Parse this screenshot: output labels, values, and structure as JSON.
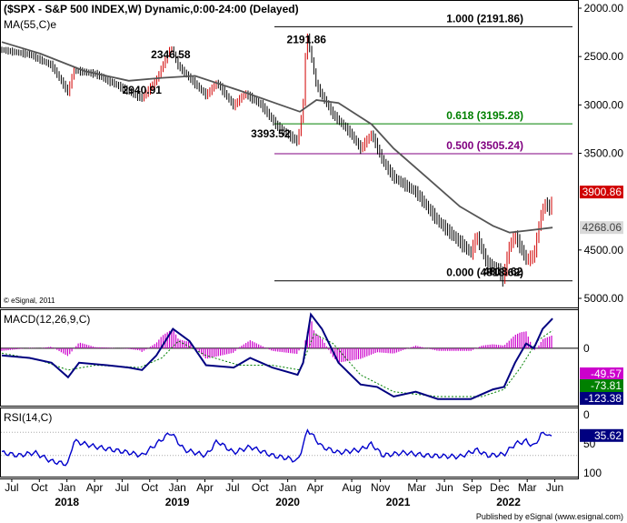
{
  "chart_data": {
    "type": "candlestick",
    "main": {
      "title": "($SPX - S&P 500 INDEX,W) Dynamic,0:00-24:00 (Delayed)",
      "ma_label": "MA(55,C)e",
      "copyright": "© eSignal, 2011",
      "ylim": [
        2000,
        5000
      ],
      "yticks": [
        {
          "v": 5000,
          "label": "5000.00"
        },
        {
          "v": 4500,
          "label": "4500.00"
        },
        {
          "v": 3500,
          "label": "3500.00"
        },
        {
          "v": 3000,
          "label": "3000.00"
        },
        {
          "v": 2500,
          "label": "2500.00"
        },
        {
          "v": 2000,
          "label": "2000.00"
        }
      ],
      "last_ma": {
        "v": 4268.06,
        "label": "4268.06",
        "color": "#d9d9d9",
        "text": "#444444"
      },
      "last_price": {
        "v": 3900.86,
        "label": "3900.86",
        "color": "#d00000",
        "text": "#ffffff"
      },
      "fib_levels": [
        {
          "v": 4818.62,
          "label": "0.000 (4818.62)",
          "color": "#000000"
        },
        {
          "v": 3505.24,
          "label": "0.500 (3505.24)",
          "color": "#800080"
        },
        {
          "v": 3195.28,
          "label": "0.618 (3195.28)",
          "color": "#008000"
        },
        {
          "v": 2191.86,
          "label": "1.000 (2191.86)",
          "color": "#000000"
        }
      ],
      "annotations": [
        {
          "label": "4818.62",
          "x": 2021.99,
          "v": 4818.62,
          "pos": "above"
        },
        {
          "label": "3393.52",
          "x": 2020.13,
          "v": 3393.52,
          "pos": "above-left"
        },
        {
          "label": "2940.91",
          "x": 2018.72,
          "v": 2940.91,
          "pos": "above"
        },
        {
          "label": "2346.58",
          "x": 2018.98,
          "v": 2346.58,
          "pos": "below"
        },
        {
          "label": "2191.86",
          "x": 2020.21,
          "v": 2191.86,
          "pos": "below"
        }
      ],
      "price_keypoints": [
        [
          2017.45,
          2430
        ],
        [
          2017.7,
          2480
        ],
        [
          2017.9,
          2590
        ],
        [
          2018.05,
          2870
        ],
        [
          2018.1,
          2640
        ],
        [
          2018.3,
          2680
        ],
        [
          2018.5,
          2800
        ],
        [
          2018.72,
          2930
        ],
        [
          2018.85,
          2740
        ],
        [
          2018.98,
          2400
        ],
        [
          2019.05,
          2600
        ],
        [
          2019.3,
          2900
        ],
        [
          2019.4,
          2770
        ],
        [
          2019.55,
          3010
        ],
        [
          2019.65,
          2880
        ],
        [
          2019.8,
          3000
        ],
        [
          2019.95,
          3230
        ],
        [
          2020.13,
          3380
        ],
        [
          2020.18,
          3000
        ],
        [
          2020.21,
          2240
        ],
        [
          2020.3,
          2800
        ],
        [
          2020.45,
          3100
        ],
        [
          2020.6,
          3280
        ],
        [
          2020.7,
          3450
        ],
        [
          2020.8,
          3300
        ],
        [
          2020.9,
          3580
        ],
        [
          2021.0,
          3750
        ],
        [
          2021.2,
          3900
        ],
        [
          2021.4,
          4200
        ],
        [
          2021.6,
          4420
        ],
        [
          2021.7,
          4530
        ],
        [
          2021.75,
          4350
        ],
        [
          2021.85,
          4650
        ],
        [
          2021.95,
          4700
        ],
        [
          2021.99,
          4800
        ],
        [
          2022.05,
          4450
        ],
        [
          2022.1,
          4350
        ],
        [
          2022.2,
          4600
        ],
        [
          2022.27,
          4560
        ],
        [
          2022.33,
          4150
        ],
        [
          2022.38,
          4000
        ],
        [
          2022.42,
          4110
        ],
        [
          2022.44,
          3900
        ]
      ],
      "ma_keypoints": [
        [
          2017.45,
          2350
        ],
        [
          2017.8,
          2470
        ],
        [
          2018.2,
          2650
        ],
        [
          2018.6,
          2750
        ],
        [
          2018.9,
          2720
        ],
        [
          2019.2,
          2700
        ],
        [
          2019.6,
          2850
        ],
        [
          2019.95,
          2990
        ],
        [
          2020.15,
          3070
        ],
        [
          2020.3,
          2950
        ],
        [
          2020.5,
          2980
        ],
        [
          2020.8,
          3200
        ],
        [
          2021.0,
          3450
        ],
        [
          2021.3,
          3750
        ],
        [
          2021.6,
          4050
        ],
        [
          2021.9,
          4250
        ],
        [
          2022.05,
          4320
        ],
        [
          2022.2,
          4300
        ],
        [
          2022.44,
          4268
        ]
      ]
    },
    "macd": {
      "label": "MACD(12,26,9,C)",
      "ylim": [
        -150,
        230
      ],
      "zero": 0,
      "values": [
        {
          "label": "-49.57",
          "color": "#cc00cc",
          "text": "#ffffff"
        },
        {
          "label": "-73.81",
          "color": "#008000",
          "text": "#ffffff"
        },
        {
          "label": "-123.38",
          "color": "#000080",
          "text": "#ffffff"
        }
      ],
      "macd_keypoints": [
        [
          2017.45,
          30
        ],
        [
          2017.7,
          40
        ],
        [
          2017.9,
          60
        ],
        [
          2018.05,
          120
        ],
        [
          2018.15,
          60
        ],
        [
          2018.4,
          70
        ],
        [
          2018.6,
          80
        ],
        [
          2018.72,
          90
        ],
        [
          2018.85,
          30
        ],
        [
          2019.0,
          -80
        ],
        [
          2019.15,
          -30
        ],
        [
          2019.3,
          70
        ],
        [
          2019.55,
          80
        ],
        [
          2019.7,
          40
        ],
        [
          2019.9,
          80
        ],
        [
          2020.13,
          110
        ],
        [
          2020.18,
          60
        ],
        [
          2020.25,
          -140
        ],
        [
          2020.35,
          -80
        ],
        [
          2020.5,
          60
        ],
        [
          2020.7,
          150
        ],
        [
          2020.85,
          160
        ],
        [
          2021.0,
          200
        ],
        [
          2021.2,
          180
        ],
        [
          2021.4,
          210
        ],
        [
          2021.7,
          210
        ],
        [
          2021.9,
          170
        ],
        [
          2022.0,
          160
        ],
        [
          2022.1,
          60
        ],
        [
          2022.2,
          -20
        ],
        [
          2022.27,
          0
        ],
        [
          2022.35,
          -80
        ],
        [
          2022.44,
          -123
        ]
      ],
      "signal_keypoints": [
        [
          2017.45,
          20
        ],
        [
          2017.8,
          50
        ],
        [
          2018.05,
          90
        ],
        [
          2018.3,
          70
        ],
        [
          2018.7,
          80
        ],
        [
          2018.9,
          40
        ],
        [
          2019.05,
          -30
        ],
        [
          2019.3,
          30
        ],
        [
          2019.6,
          70
        ],
        [
          2019.9,
          70
        ],
        [
          2020.15,
          90
        ],
        [
          2020.28,
          -60
        ],
        [
          2020.45,
          -20
        ],
        [
          2020.7,
          110
        ],
        [
          2021.0,
          180
        ],
        [
          2021.4,
          200
        ],
        [
          2021.8,
          200
        ],
        [
          2022.0,
          170
        ],
        [
          2022.15,
          80
        ],
        [
          2022.3,
          -30
        ],
        [
          2022.44,
          -74
        ]
      ]
    },
    "rsi": {
      "label": "RSI(14,C)",
      "ylim": [
        0,
        100
      ],
      "yticks": [
        {
          "v": 100,
          "label": "100"
        },
        {
          "v": 50,
          "label": "50"
        },
        {
          "v": 0,
          "label": "0"
        }
      ],
      "guides": [
        70,
        30
      ],
      "value": {
        "label": "35.62",
        "color": "#000080",
        "text": "#ffffff"
      },
      "keypoints": [
        [
          2017.45,
          65
        ],
        [
          2017.6,
          70
        ],
        [
          2017.75,
          65
        ],
        [
          2017.9,
          80
        ],
        [
          2018.05,
          85
        ],
        [
          2018.1,
          45
        ],
        [
          2018.3,
          55
        ],
        [
          2018.6,
          65
        ],
        [
          2018.72,
          70
        ],
        [
          2018.85,
          50
        ],
        [
          2018.98,
          30
        ],
        [
          2019.1,
          60
        ],
        [
          2019.3,
          70
        ],
        [
          2019.4,
          45
        ],
        [
          2019.55,
          65
        ],
        [
          2019.7,
          55
        ],
        [
          2019.9,
          70
        ],
        [
          2020.05,
          75
        ],
        [
          2020.13,
          80
        ],
        [
          2020.2,
          40
        ],
        [
          2020.22,
          25
        ],
        [
          2020.35,
          55
        ],
        [
          2020.5,
          65
        ],
        [
          2020.7,
          60
        ],
        [
          2020.8,
          50
        ],
        [
          2020.9,
          70
        ],
        [
          2021.1,
          65
        ],
        [
          2021.3,
          70
        ],
        [
          2021.6,
          72
        ],
        [
          2021.75,
          60
        ],
        [
          2021.85,
          70
        ],
        [
          2022.0,
          68
        ],
        [
          2022.1,
          50
        ],
        [
          2022.2,
          45
        ],
        [
          2022.27,
          55
        ],
        [
          2022.33,
          35
        ],
        [
          2022.38,
          30
        ],
        [
          2022.42,
          40
        ],
        [
          2022.44,
          36
        ]
      ]
    },
    "xaxis": {
      "months": [
        {
          "x": 2017.54,
          "label": "Jul"
        },
        {
          "x": 2017.79,
          "label": "Oct"
        },
        {
          "x": 2018.04,
          "label": "Jan"
        },
        {
          "x": 2018.29,
          "label": "Apr"
        },
        {
          "x": 2018.54,
          "label": "Jul"
        },
        {
          "x": 2018.79,
          "label": "Oct"
        },
        {
          "x": 2019.04,
          "label": "Jan"
        },
        {
          "x": 2019.29,
          "label": "Apr"
        },
        {
          "x": 2019.54,
          "label": "Jul"
        },
        {
          "x": 2019.79,
          "label": "Oct"
        },
        {
          "x": 2020.04,
          "label": "Jan"
        },
        {
          "x": 2020.29,
          "label": "Apr"
        },
        {
          "x": 2020.62,
          "label": "Aug"
        },
        {
          "x": 2020.88,
          "label": "Nov"
        },
        {
          "x": 2021.21,
          "label": "Mar"
        },
        {
          "x": 2021.46,
          "label": "Jun"
        },
        {
          "x": 2021.71,
          "label": "Sep"
        },
        {
          "x": 2021.96,
          "label": "Dec"
        },
        {
          "x": 2022.21,
          "label": "Mar"
        },
        {
          "x": 2022.46,
          "label": "Jun"
        }
      ],
      "years": [
        {
          "x": 2018.04,
          "label": "2018"
        },
        {
          "x": 2019.04,
          "label": "2019"
        },
        {
          "x": 2020.04,
          "label": "2020"
        },
        {
          "x": 2021.04,
          "label": "2021"
        },
        {
          "x": 2022.04,
          "label": "2022"
        }
      ]
    },
    "footer": "Published by eSignal (www.esignal.com)"
  }
}
